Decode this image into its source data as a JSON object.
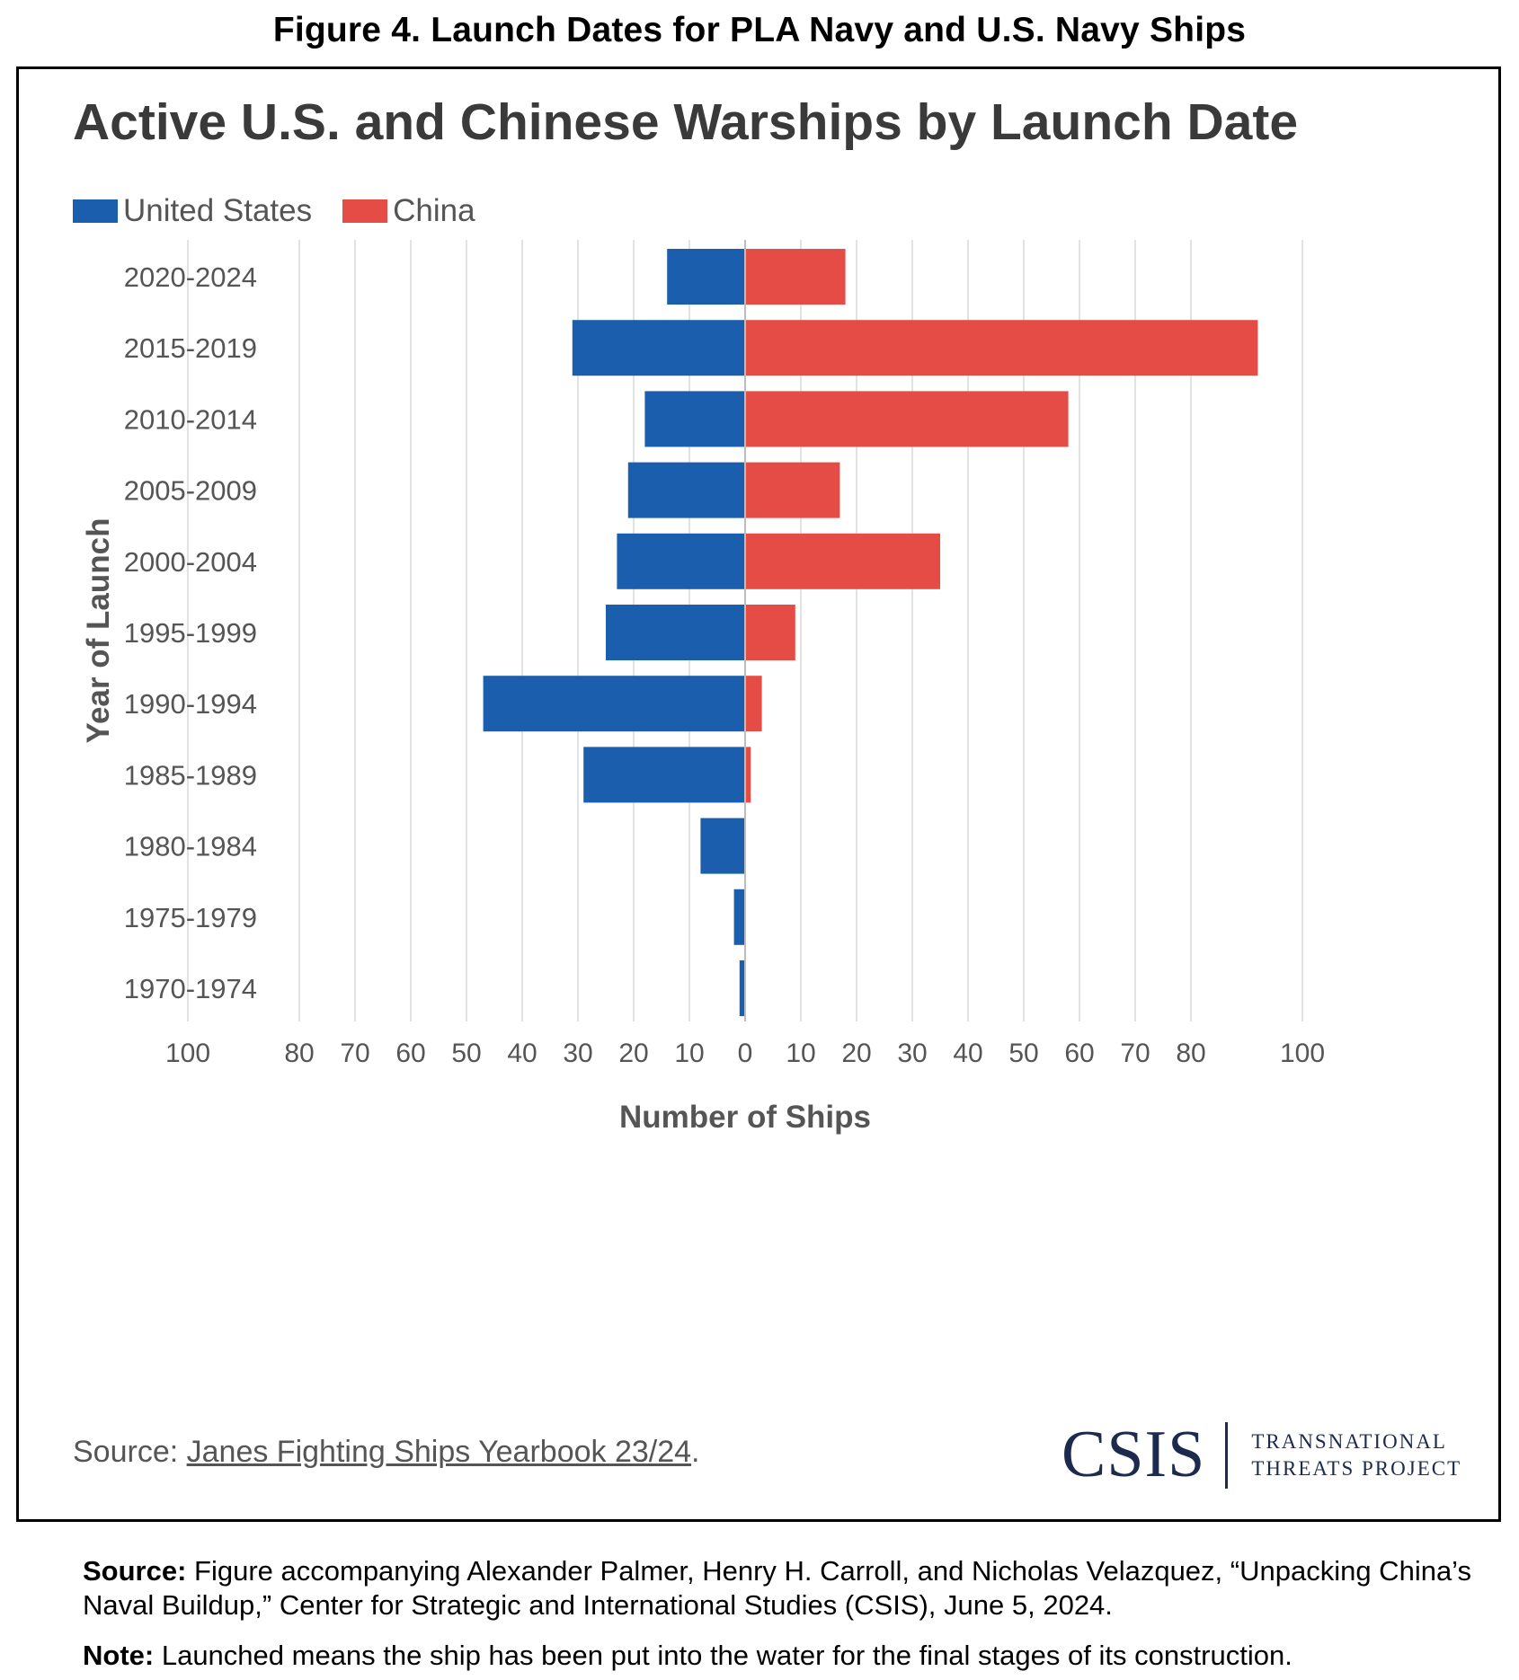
{
  "figure_caption": "Figure 4. Launch Dates for PLA Navy and U.S. Navy Ships",
  "colors": {
    "united_states": "#1a5ead",
    "china": "#e44c45",
    "grid": "#e2e2e2",
    "text": "#555555"
  },
  "chart_data": {
    "type": "bar",
    "orientation": "horizontal-diverging",
    "title": "Active U.S. and Chinese Warships by Launch Date",
    "xlabel": "Number of Ships",
    "ylabel": "Year of Launch",
    "categories": [
      "2020-2024",
      "2015-2019",
      "2010-2014",
      "2005-2009",
      "2000-2004",
      "1995-1999",
      "1990-1994",
      "1985-1989",
      "1980-1984",
      "1975-1979",
      "1970-1974"
    ],
    "series": [
      {
        "name": "United States",
        "values": [
          14,
          31,
          18,
          21,
          23,
          25,
          47,
          29,
          8,
          2,
          1
        ]
      },
      {
        "name": "China",
        "values": [
          18,
          92,
          58,
          17,
          35,
          9,
          3,
          1,
          0,
          0,
          0
        ]
      }
    ],
    "xlim": [
      -100,
      100
    ],
    "x_ticks": [
      -100,
      -80,
      -70,
      -60,
      -50,
      -40,
      -30,
      -20,
      -10,
      0,
      10,
      20,
      30,
      40,
      50,
      60,
      70,
      80,
      100
    ],
    "x_tick_labels": [
      "100",
      "80",
      "70",
      "60",
      "50",
      "40",
      "30",
      "20",
      "10",
      "0",
      "10",
      "20",
      "30",
      "40",
      "50",
      "60",
      "70",
      "80",
      "100"
    ],
    "grid": true,
    "legend_position": "top-left"
  },
  "chart_source": {
    "prefix": "Source: ",
    "link_text": "Janes Fighting Ships Yearbook 23/24",
    "suffix": "."
  },
  "logo": {
    "name": "CSIS",
    "line1": "TRANSNATIONAL",
    "line2": "THREATS PROJECT"
  },
  "footnotes": {
    "source_label": "Source:",
    "source_text": " Figure accompanying Alexander Palmer, Henry H. Carroll, and Nicholas Velazquez, “Unpacking China’s Naval Buildup,” Center for Strategic and International Studies (CSIS), June 5, 2024.",
    "note_label": "Note:",
    "note_text": " Launched means the ship has been put into the water for the final stages of its construction."
  }
}
